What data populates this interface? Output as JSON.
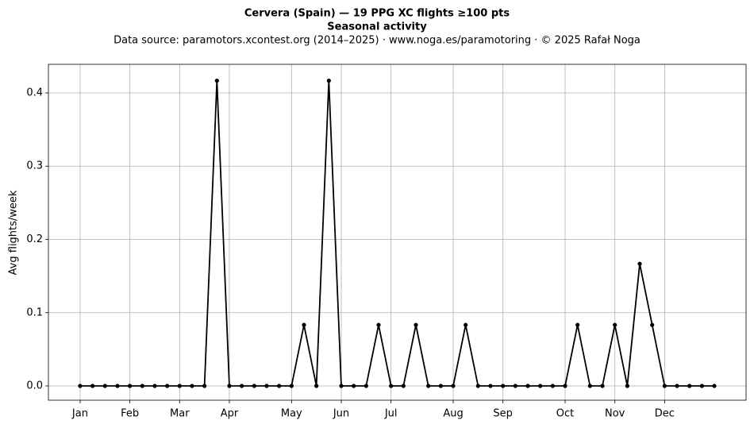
{
  "chart_data": {
    "type": "line",
    "title": "Cervera (Spain)  —  19 PPG XC flights ≥100 pts",
    "subtitle": "Seasonal activity",
    "source": "Data source: paramotors.xcontest.org (2014–2025)  ·  www.noga.es/paramotoring  ·  © 2025 Rafał Noga",
    "y_label": "Avg flights/week",
    "x": [
      1,
      2,
      3,
      4,
      5,
      6,
      7,
      8,
      9,
      10,
      11,
      12,
      13,
      14,
      15,
      16,
      17,
      18,
      19,
      20,
      21,
      22,
      23,
      24,
      25,
      26,
      27,
      28,
      29,
      30,
      31,
      32,
      33,
      34,
      35,
      36,
      37,
      38,
      39,
      40,
      41,
      42,
      43,
      44,
      45,
      46,
      47,
      48,
      49,
      50,
      51,
      52
    ],
    "series": [
      {
        "name": "Avg flights/week",
        "color": "#000000",
        "values": [
          0,
          0,
          0,
          0,
          0,
          0,
          0,
          0,
          0,
          0,
          0,
          0.4167,
          0,
          0,
          0,
          0,
          0,
          0,
          0.0833,
          0,
          0.4167,
          0,
          0,
          0,
          0.0833,
          0,
          0,
          0.0833,
          0,
          0,
          0,
          0.0833,
          0,
          0,
          0,
          0,
          0,
          0,
          0,
          0,
          0.0833,
          0,
          0,
          0.0833,
          0,
          0.1667,
          0.0833,
          0,
          0,
          0,
          0,
          0
        ]
      }
    ],
    "xlim": [
      -1.55,
      54.55
    ],
    "xticks": [
      {
        "value": 1,
        "label": "Jan"
      },
      {
        "value": 5,
        "label": "Feb"
      },
      {
        "value": 9,
        "label": "Mar"
      },
      {
        "value": 13,
        "label": "Apr"
      },
      {
        "value": 18,
        "label": "May"
      },
      {
        "value": 22,
        "label": "Jun"
      },
      {
        "value": 26,
        "label": "Jul"
      },
      {
        "value": 31,
        "label": "Aug"
      },
      {
        "value": 35,
        "label": "Sep"
      },
      {
        "value": 40,
        "label": "Oct"
      },
      {
        "value": 44,
        "label": "Nov"
      },
      {
        "value": 48,
        "label": "Dec"
      }
    ],
    "ylim": [
      -0.0195,
      0.439
    ],
    "yticks": [
      {
        "value": 0,
        "label": "0.0"
      },
      0.1,
      0.2,
      0.3,
      0.4
    ],
    "grid": true
  }
}
